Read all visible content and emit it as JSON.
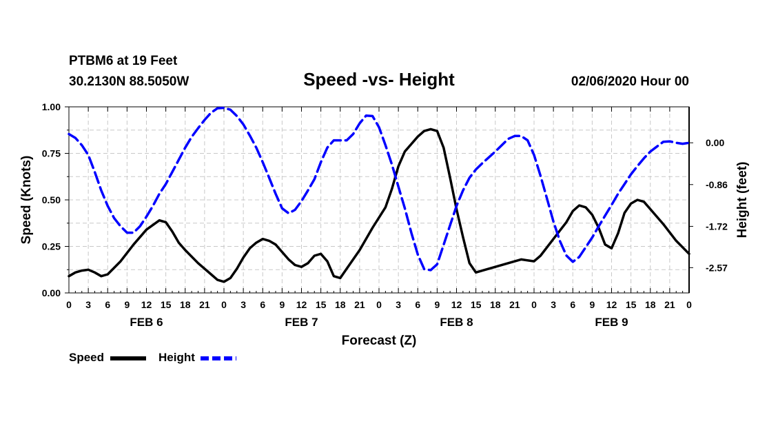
{
  "header": {
    "station": "PTBM6 at 19 Feet",
    "location": "30.2130N 88.5050W",
    "title": "Speed -vs- Height",
    "timestamp": "02/06/2020 Hour 00"
  },
  "chart_data": {
    "type": "line",
    "title": "Speed -vs- Height",
    "xlabel": "Forecast (Z)",
    "ylabel_left": "Speed (Knots)",
    "ylabel_right": "Height (feet)",
    "x_range_hours": [
      0,
      96
    ],
    "x_tick_labels": [
      "0",
      "3",
      "6",
      "9",
      "12",
      "15",
      "18",
      "21",
      "0",
      "3",
      "6",
      "9",
      "12",
      "15",
      "18",
      "21",
      "0",
      "3",
      "6",
      "9",
      "12",
      "15",
      "18",
      "21",
      "0",
      "3",
      "6",
      "9",
      "12",
      "15",
      "18",
      "21",
      "0"
    ],
    "day_labels": [
      {
        "label": "FEB 6",
        "hour": 12
      },
      {
        "label": "FEB 7",
        "hour": 36
      },
      {
        "label": "FEB 8",
        "hour": 60
      },
      {
        "label": "FEB 9",
        "hour": 84
      }
    ],
    "y_left": {
      "min": 0,
      "max": 1.0,
      "ticks": [
        "0.00",
        "0.25",
        "0.50",
        "0.75",
        "1.00"
      ]
    },
    "y_right": {
      "min": -3.09,
      "max": 0.74,
      "ticks": [
        {
          "value": 0.0,
          "label": "0.00"
        },
        {
          "value": -0.86,
          "label": "-0.86"
        },
        {
          "value": -1.72,
          "label": "-1.72"
        },
        {
          "value": -2.57,
          "label": "-2.57"
        }
      ]
    },
    "grid": true,
    "series": [
      {
        "name": "Speed",
        "axis": "left",
        "color": "#000000",
        "style": "solid",
        "points": [
          [
            0,
            0.09
          ],
          [
            1,
            0.11
          ],
          [
            2,
            0.12
          ],
          [
            3,
            0.125
          ],
          [
            4,
            0.11
          ],
          [
            5,
            0.09
          ],
          [
            6,
            0.1
          ],
          [
            8,
            0.17
          ],
          [
            10,
            0.26
          ],
          [
            12,
            0.34
          ],
          [
            14,
            0.39
          ],
          [
            15,
            0.38
          ],
          [
            16,
            0.33
          ],
          [
            17,
            0.27
          ],
          [
            18,
            0.23
          ],
          [
            20,
            0.16
          ],
          [
            22,
            0.1
          ],
          [
            23,
            0.07
          ],
          [
            24,
            0.06
          ],
          [
            25,
            0.08
          ],
          [
            26,
            0.13
          ],
          [
            27,
            0.19
          ],
          [
            28,
            0.24
          ],
          [
            29,
            0.27
          ],
          [
            30,
            0.29
          ],
          [
            31,
            0.28
          ],
          [
            32,
            0.26
          ],
          [
            33,
            0.22
          ],
          [
            34,
            0.18
          ],
          [
            35,
            0.15
          ],
          [
            36,
            0.14
          ],
          [
            37,
            0.16
          ],
          [
            38,
            0.2
          ],
          [
            39,
            0.21
          ],
          [
            40,
            0.17
          ],
          [
            41,
            0.09
          ],
          [
            42,
            0.08
          ],
          [
            43,
            0.13
          ],
          [
            45,
            0.23
          ],
          [
            47,
            0.35
          ],
          [
            49,
            0.46
          ],
          [
            50,
            0.56
          ],
          [
            51,
            0.68
          ],
          [
            52,
            0.76
          ],
          [
            53,
            0.8
          ],
          [
            54,
            0.84
          ],
          [
            55,
            0.87
          ],
          [
            56,
            0.88
          ],
          [
            57,
            0.87
          ],
          [
            58,
            0.78
          ],
          [
            59,
            0.62
          ],
          [
            60,
            0.45
          ],
          [
            61,
            0.3
          ],
          [
            62,
            0.16
          ],
          [
            63,
            0.11
          ],
          [
            64,
            0.12
          ],
          [
            66,
            0.14
          ],
          [
            68,
            0.16
          ],
          [
            70,
            0.18
          ],
          [
            72,
            0.17
          ],
          [
            73,
            0.2
          ],
          [
            75,
            0.29
          ],
          [
            77,
            0.38
          ],
          [
            78,
            0.44
          ],
          [
            79,
            0.47
          ],
          [
            80,
            0.46
          ],
          [
            81,
            0.42
          ],
          [
            82,
            0.35
          ],
          [
            83,
            0.26
          ],
          [
            84,
            0.24
          ],
          [
            85,
            0.32
          ],
          [
            86,
            0.43
          ],
          [
            87,
            0.48
          ],
          [
            88,
            0.5
          ],
          [
            89,
            0.49
          ],
          [
            90,
            0.45
          ],
          [
            92,
            0.37
          ],
          [
            94,
            0.28
          ],
          [
            96,
            0.21
          ]
        ]
      },
      {
        "name": "Height",
        "axis": "right",
        "color": "#0000ff",
        "style": "dashed",
        "points": [
          [
            0,
            0.18
          ],
          [
            1,
            0.1
          ],
          [
            2,
            -0.05
          ],
          [
            3,
            -0.25
          ],
          [
            4,
            -0.6
          ],
          [
            5,
            -0.98
          ],
          [
            6,
            -1.3
          ],
          [
            7,
            -1.55
          ],
          [
            8,
            -1.72
          ],
          [
            9,
            -1.85
          ],
          [
            10,
            -1.85
          ],
          [
            11,
            -1.72
          ],
          [
            12,
            -1.52
          ],
          [
            13,
            -1.3
          ],
          [
            14,
            -1.05
          ],
          [
            15,
            -0.85
          ],
          [
            16,
            -0.6
          ],
          [
            17,
            -0.35
          ],
          [
            18,
            -0.1
          ],
          [
            19,
            0.12
          ],
          [
            20,
            0.3
          ],
          [
            21,
            0.47
          ],
          [
            22,
            0.62
          ],
          [
            23,
            0.71
          ],
          [
            24,
            0.72
          ],
          [
            25,
            0.68
          ],
          [
            26,
            0.55
          ],
          [
            27,
            0.38
          ],
          [
            28,
            0.15
          ],
          [
            29,
            -0.1
          ],
          [
            30,
            -0.4
          ],
          [
            31,
            -0.72
          ],
          [
            32,
            -1.05
          ],
          [
            33,
            -1.35
          ],
          [
            34,
            -1.45
          ],
          [
            35,
            -1.38
          ],
          [
            36,
            -1.2
          ],
          [
            37,
            -0.98
          ],
          [
            38,
            -0.75
          ],
          [
            39,
            -0.4
          ],
          [
            40,
            -0.1
          ],
          [
            41,
            0.05
          ],
          [
            42,
            0.05
          ],
          [
            43,
            0.05
          ],
          [
            44,
            0.18
          ],
          [
            45,
            0.4
          ],
          [
            46,
            0.56
          ],
          [
            47,
            0.55
          ],
          [
            48,
            0.32
          ],
          [
            49,
            -0.05
          ],
          [
            50,
            -0.45
          ],
          [
            51,
            -0.9
          ],
          [
            52,
            -1.35
          ],
          [
            53,
            -1.85
          ],
          [
            54,
            -2.3
          ],
          [
            55,
            -2.6
          ],
          [
            56,
            -2.62
          ],
          [
            57,
            -2.5
          ],
          [
            58,
            -2.1
          ],
          [
            59,
            -1.7
          ],
          [
            60,
            -1.3
          ],
          [
            61,
            -0.98
          ],
          [
            62,
            -0.72
          ],
          [
            63,
            -0.55
          ],
          [
            64,
            -0.42
          ],
          [
            65,
            -0.3
          ],
          [
            66,
            -0.18
          ],
          [
            67,
            -0.05
          ],
          [
            68,
            0.08
          ],
          [
            69,
            0.14
          ],
          [
            70,
            0.14
          ],
          [
            71,
            0.05
          ],
          [
            72,
            -0.25
          ],
          [
            73,
            -0.68
          ],
          [
            74,
            -1.15
          ],
          [
            75,
            -1.62
          ],
          [
            76,
            -2.02
          ],
          [
            77,
            -2.32
          ],
          [
            78,
            -2.45
          ],
          [
            79,
            -2.35
          ],
          [
            80,
            -2.15
          ],
          [
            81,
            -1.95
          ],
          [
            82,
            -1.72
          ],
          [
            83,
            -1.5
          ],
          [
            84,
            -1.28
          ],
          [
            85,
            -1.05
          ],
          [
            86,
            -0.85
          ],
          [
            87,
            -0.65
          ],
          [
            88,
            -0.48
          ],
          [
            89,
            -0.32
          ],
          [
            90,
            -0.18
          ],
          [
            91,
            -0.08
          ],
          [
            92,
            0.02
          ],
          [
            93,
            0.03
          ],
          [
            94,
            0.0
          ],
          [
            95,
            -0.02
          ],
          [
            96,
            0.0
          ]
        ]
      }
    ],
    "legend": {
      "position": "bottom-left",
      "entries": [
        {
          "label": "Speed",
          "color": "#000000",
          "style": "solid"
        },
        {
          "label": "Height",
          "color": "#0000ff",
          "style": "dashed"
        }
      ]
    }
  }
}
